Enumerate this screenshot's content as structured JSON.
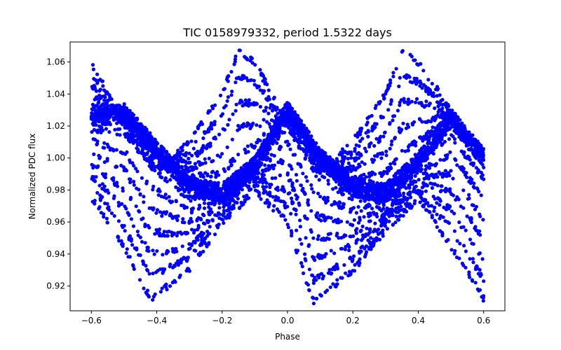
{
  "chart_data": {
    "type": "scatter",
    "title": "TIC 0158979332, period 1.5322 days",
    "xlabel": "Phase",
    "ylabel": "Normalized PDC flux",
    "xlim": [
      -0.665,
      0.665
    ],
    "ylim": [
      0.9045,
      1.0725
    ],
    "x_ticks": [
      -0.6,
      -0.4,
      -0.2,
      0.0,
      0.2,
      0.4,
      0.6
    ],
    "x_tick_labels": [
      "−0.6",
      "−0.4",
      "−0.2",
      "0.0",
      "0.2",
      "0.4",
      "0.6"
    ],
    "y_ticks": [
      0.92,
      0.94,
      0.96,
      0.98,
      1.0,
      1.02,
      1.04,
      1.06
    ],
    "y_tick_labels": [
      "0.92",
      "0.94",
      "0.96",
      "0.98",
      "1.00",
      "1.02",
      "1.04",
      "1.06"
    ],
    "grid": false,
    "legend": "none",
    "point_color": "#0000ff",
    "phase_range": [
      -0.6,
      0.6
    ],
    "series": [
      {
        "values_at_phase": [
          [
            -0.6,
            1.025
          ],
          [
            -0.5,
            1.028
          ],
          [
            -0.4,
            1.005
          ],
          [
            -0.3,
            0.982
          ],
          [
            -0.2,
            0.978
          ],
          [
            -0.1,
            0.995
          ],
          [
            0.0,
            1.03
          ],
          [
            0.1,
            1.0
          ],
          [
            0.2,
            0.982
          ],
          [
            0.3,
            0.978
          ],
          [
            0.4,
            0.998
          ],
          [
            0.5,
            1.025
          ],
          [
            0.6,
            1.0
          ]
        ]
      },
      {
        "values_at_phase": [
          [
            -0.6,
            1.06
          ],
          [
            -0.5,
            1.02
          ],
          [
            -0.4,
            0.99
          ],
          [
            -0.3,
            1.01
          ],
          [
            -0.2,
            1.04
          ],
          [
            -0.15,
            1.067
          ],
          [
            -0.1,
            1.06
          ],
          [
            0.0,
            1.02
          ],
          [
            0.1,
            0.99
          ],
          [
            0.2,
            1.01
          ],
          [
            0.3,
            1.04
          ],
          [
            0.35,
            1.067
          ],
          [
            0.4,
            1.06
          ],
          [
            0.5,
            1.03
          ],
          [
            0.6,
            1.0
          ]
        ]
      },
      {
        "values_at_phase": [
          [
            -0.6,
            0.975
          ],
          [
            -0.5,
            0.945
          ],
          [
            -0.42,
            0.912
          ],
          [
            -0.3,
            0.93
          ],
          [
            -0.2,
            0.96
          ],
          [
            -0.1,
            0.98
          ],
          [
            0.0,
            0.96
          ],
          [
            0.08,
            0.91
          ],
          [
            0.2,
            0.93
          ],
          [
            0.3,
            0.955
          ],
          [
            0.4,
            0.975
          ],
          [
            0.5,
            0.945
          ],
          [
            0.6,
            0.912
          ]
        ]
      }
    ]
  }
}
